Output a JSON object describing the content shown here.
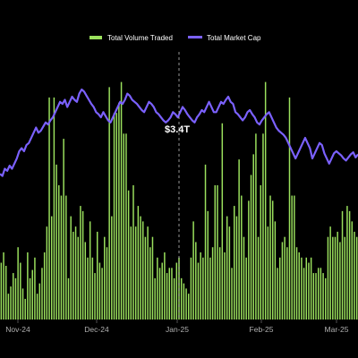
{
  "chart_data": {
    "type": "bar+line",
    "title": "",
    "xlabel": "",
    "ylabel": "",
    "grid": false,
    "legend": "top-center",
    "colors": {
      "volume": "#9be15d",
      "market_cap": "#7b61ff",
      "background": "#000000"
    },
    "x_ticks": [
      "Nov-24",
      "Dec-24",
      "Jan-25",
      "Feb-25",
      "Mar-25"
    ],
    "cursor": {
      "date": "Jan-25",
      "label": "$3.4T"
    },
    "series": [
      {
        "name": "Total Volume Traded",
        "kind": "bar",
        "values": [
          55,
          65,
          52,
          25,
          32,
          45,
          40,
          70,
          55,
          30,
          20,
          65,
          40,
          48,
          60,
          25,
          35,
          50,
          65,
          90,
          215,
          100,
          215,
          150,
          130,
          120,
          175,
          120,
          40,
          100,
          85,
          90,
          80,
          110,
          105,
          75,
          60,
          95,
          60,
          45,
          85,
          55,
          50,
          80,
          70,
          225,
          100,
          200,
          200,
          210,
          230,
          180,
          180,
          125,
          90,
          130,
          90,
          110,
          100,
          95,
          80,
          90,
          70,
          80,
          40,
          60,
          50,
          55,
          65,
          45,
          50,
          50,
          40,
          55,
          60,
          40,
          35,
          30,
          25,
          60,
          95,
          75,
          55,
          65,
          60,
          150,
          105,
          60,
          70,
          130,
          130,
          70,
          190,
          65,
          100,
          90,
          50,
          110,
          100,
          155,
          120,
          80,
          60,
          115,
          140,
          160,
          180,
          80,
          130,
          180,
          230,
          90,
          120,
          115,
          95,
          50,
          60,
          75,
          80,
          70,
          215,
          120,
          120,
          70,
          65,
          60,
          50,
          60,
          55,
          60,
          45,
          45,
          50,
          50,
          45,
          40,
          80,
          90,
          80,
          80,
          85,
          75,
          105,
          80,
          110,
          105,
          95,
          85,
          80
        ]
      },
      {
        "name": "Total Market Cap",
        "kind": "line",
        "values": [
          2.9,
          2.88,
          2.95,
          2.93,
          2.98,
          2.95,
          3.0,
          3.05,
          3.12,
          3.15,
          3.12,
          3.18,
          3.2,
          3.25,
          3.3,
          3.35,
          3.3,
          3.32,
          3.36,
          3.4,
          3.38,
          3.42,
          3.45,
          3.5,
          3.55,
          3.6,
          3.58,
          3.62,
          3.55,
          3.6,
          3.65,
          3.62,
          3.6,
          3.68,
          3.72,
          3.7,
          3.66,
          3.62,
          3.58,
          3.55,
          3.5,
          3.48,
          3.45,
          3.5,
          3.46,
          3.42,
          3.4,
          3.45,
          3.5,
          3.55,
          3.6,
          3.58,
          3.62,
          3.68,
          3.66,
          3.62,
          3.6,
          3.58,
          3.55,
          3.52,
          3.5,
          3.55,
          3.6,
          3.58,
          3.55,
          3.5,
          3.48,
          3.45,
          3.42,
          3.4,
          3.42,
          3.45,
          3.5,
          3.48,
          3.45,
          3.5,
          3.55,
          3.52,
          3.48,
          3.45,
          3.42,
          3.4,
          3.45,
          3.48,
          3.52,
          3.5,
          3.55,
          3.6,
          3.55,
          3.5,
          3.5,
          3.55,
          3.6,
          3.58,
          3.62,
          3.65,
          3.6,
          3.58,
          3.5,
          3.48,
          3.45,
          3.42,
          3.45,
          3.5,
          3.52,
          3.48,
          3.45,
          3.4,
          3.38,
          3.42,
          3.45,
          3.48,
          3.5,
          3.45,
          3.4,
          3.35,
          3.32,
          3.3,
          3.28,
          3.25,
          3.2,
          3.15,
          3.1,
          3.05,
          3.1,
          3.15,
          3.2,
          3.25,
          3.2,
          3.15,
          3.05,
          3.1,
          3.15,
          3.2,
          3.18,
          3.1,
          3.05,
          3.0,
          3.05,
          3.1,
          3.12,
          3.1,
          3.08,
          3.05,
          3.03,
          3.06,
          3.09,
          3.11,
          3.06,
          3.09
        ]
      }
    ]
  }
}
